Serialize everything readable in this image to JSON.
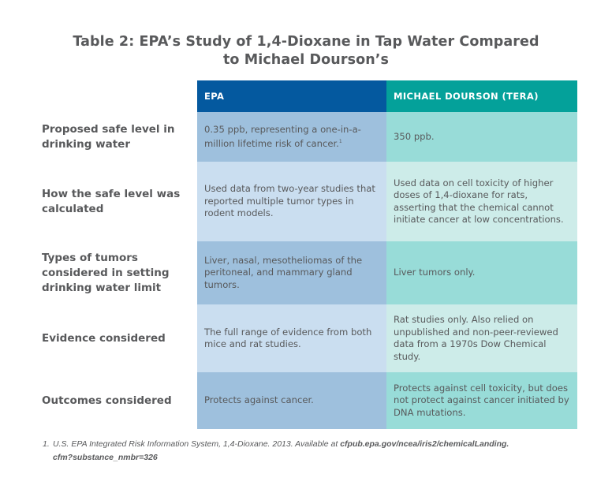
{
  "title": {
    "line1": "Table 2: EPA’s Study of 1,4-Dioxane in Tap Water Compared",
    "line2": "to Michael Dourson’s"
  },
  "table": {
    "headers": [
      "EPA",
      "MICHAEL DOURSON (TERA)"
    ],
    "rows": [
      {
        "label": "Proposed safe level in drinking water",
        "epa": "0.35 ppb, representing a one-in-a-million lifetime risk of cancer.",
        "epa_footnote_ref": "1",
        "tera": "350 ppb."
      },
      {
        "label": "How the safe level was calculated",
        "epa": "Used data from two-year studies that reported multiple tumor types in rodent models.",
        "tera": "Used data on cell toxicity of higher doses of 1,4-dioxane for rats, asserting that the chemical cannot initiate cancer at low concentrations."
      },
      {
        "label": "Types of tumors considered in setting drinking water limit",
        "epa": "Liver, nasal, mesotheliomas of the peritoneal, and mammary gland tumors.",
        "tera": "Liver tumors only."
      },
      {
        "label": "Evidence considered",
        "epa": "The full range of evidence from both mice and rat studies.",
        "tera": "Rat studies only. Also relied on unpublished and non-peer-reviewed data from a 1970s Dow Chemical study."
      },
      {
        "label": "Outcomes considered",
        "epa": "Protects against cancer.",
        "tera": "Protects against cell toxicity, but does not protect against cancer initiated by DNA mutations."
      }
    ]
  },
  "footnote": {
    "number": "1.",
    "text": "U.S. EPA Integrated Risk Information System, 1,4-Dioxane. 2013. Available at ",
    "link_line1": "cfpub.epa.gov/ncea/iris2/chemicalLanding.",
    "link_line2": "cfm?substance_nmbr=326"
  },
  "colors": {
    "epa_header": "#04599f",
    "tera_header": "#04a19a",
    "epa_dark": "#9ec0dd",
    "epa_light": "#cadef0",
    "tera_dark": "#98dcd8",
    "tera_light": "#cdece9",
    "text": "#58595b"
  }
}
